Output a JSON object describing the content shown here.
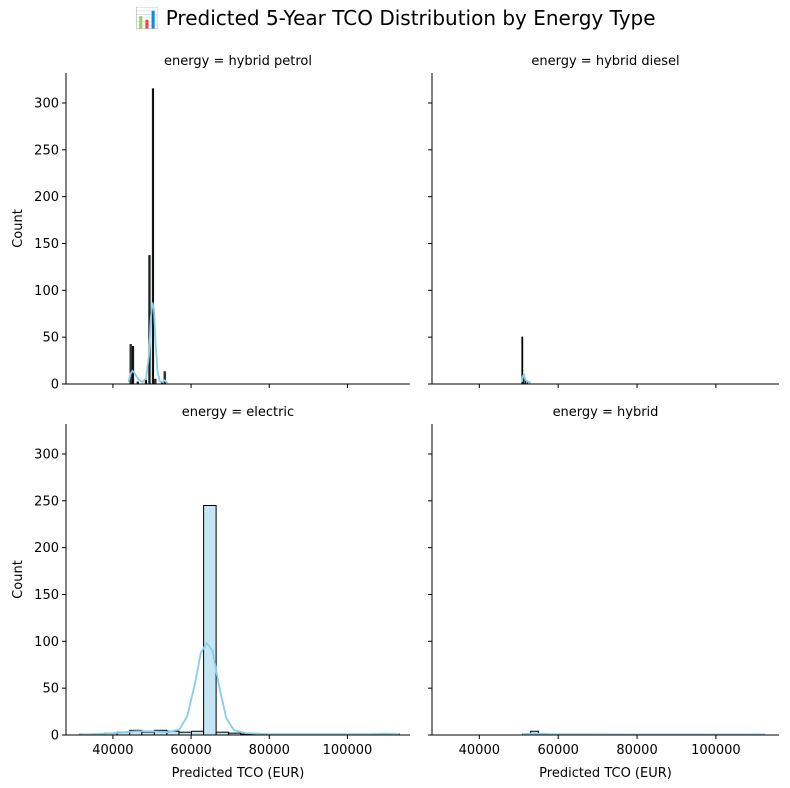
{
  "title": "📊 Predicted 5-Year TCO Distribution by Energy Type",
  "chart_data": {
    "type": "histogram",
    "title": "📊 Predicted 5-Year TCO Distribution by Energy Type",
    "xlabel": "Predicted TCO (EUR)",
    "ylabel": "Count",
    "xlim": [
      28000,
      116000
    ],
    "ylim": [
      0,
      332
    ],
    "xticks": [
      40000,
      60000,
      80000,
      100000
    ],
    "yticks": [
      0,
      50,
      100,
      150,
      200,
      250,
      300
    ],
    "bar_color": "#87ceeb",
    "kde_color": "#87ceeb",
    "edge_color": "#000000",
    "panels": [
      {
        "label": "energy = hybrid petrol",
        "bins": [
          {
            "x0": 44400,
            "x1": 44700,
            "count": 42
          },
          {
            "x0": 45000,
            "x1": 45300,
            "count": 40
          },
          {
            "x0": 46200,
            "x1": 46500,
            "count": 2
          },
          {
            "x0": 48300,
            "x1": 48600,
            "count": 4
          },
          {
            "x0": 49200,
            "x1": 49500,
            "count": 137
          },
          {
            "x0": 50100,
            "x1": 50400,
            "count": 315
          },
          {
            "x0": 50700,
            "x1": 51000,
            "count": 5
          },
          {
            "x0": 52400,
            "x1": 52700,
            "count": 2
          },
          {
            "x0": 53100,
            "x1": 53400,
            "count": 13
          }
        ],
        "kde": [
          [
            44000,
            2
          ],
          [
            44500,
            11
          ],
          [
            45000,
            14
          ],
          [
            45500,
            12
          ],
          [
            46500,
            5
          ],
          [
            47500,
            2
          ],
          [
            48500,
            6
          ],
          [
            49200,
            30
          ],
          [
            49700,
            70
          ],
          [
            50100,
            87
          ],
          [
            50500,
            80
          ],
          [
            50900,
            45
          ],
          [
            51400,
            14
          ],
          [
            52000,
            3
          ],
          [
            52700,
            2
          ],
          [
            53200,
            4
          ],
          [
            54000,
            1
          ]
        ]
      },
      {
        "label": "energy = hybrid diesel",
        "bins": [
          {
            "x0": 50800,
            "x1": 51000,
            "count": 50
          },
          {
            "x0": 51000,
            "x1": 51300,
            "count": 8
          },
          {
            "x0": 51300,
            "x1": 51700,
            "count": 5
          },
          {
            "x0": 51700,
            "x1": 52200,
            "count": 3
          },
          {
            "x0": 52200,
            "x1": 52800,
            "count": 2
          }
        ],
        "kde": [
          [
            50800,
            2
          ],
          [
            51000,
            8
          ],
          [
            51300,
            10
          ],
          [
            51600,
            5
          ],
          [
            52000,
            3
          ],
          [
            52500,
            2
          ],
          [
            53000,
            1
          ]
        ]
      },
      {
        "label": "energy = electric",
        "bins": [
          {
            "x0": 31600,
            "x1": 34800,
            "count": 1
          },
          {
            "x0": 34800,
            "x1": 37900,
            "count": 1
          },
          {
            "x0": 37900,
            "x1": 41100,
            "count": 2
          },
          {
            "x0": 41100,
            "x1": 44300,
            "count": 3
          },
          {
            "x0": 44300,
            "x1": 47400,
            "count": 5
          },
          {
            "x0": 47400,
            "x1": 50600,
            "count": 3
          },
          {
            "x0": 50600,
            "x1": 53800,
            "count": 5
          },
          {
            "x0": 53800,
            "x1": 56900,
            "count": 4
          },
          {
            "x0": 56900,
            "x1": 60100,
            "count": 3
          },
          {
            "x0": 60100,
            "x1": 63200,
            "count": 4
          },
          {
            "x0": 63200,
            "x1": 66400,
            "count": 245
          },
          {
            "x0": 66400,
            "x1": 69600,
            "count": 3
          },
          {
            "x0": 69600,
            "x1": 72700,
            "count": 2
          },
          {
            "x0": 72700,
            "x1": 75900,
            "count": 1
          },
          {
            "x0": 75900,
            "x1": 79100,
            "count": 1
          },
          {
            "x0": 79100,
            "x1": 82200,
            "count": 1
          },
          {
            "x0": 100000,
            "x1": 103000,
            "count": 1
          },
          {
            "x0": 110000,
            "x1": 113300,
            "count": 1
          }
        ],
        "kde": [
          [
            31600,
            0.5
          ],
          [
            35000,
            1
          ],
          [
            40000,
            2
          ],
          [
            43000,
            3
          ],
          [
            46000,
            4
          ],
          [
            50000,
            4
          ],
          [
            54000,
            3
          ],
          [
            57000,
            6
          ],
          [
            59000,
            20
          ],
          [
            61000,
            55
          ],
          [
            62500,
            88
          ],
          [
            64000,
            98
          ],
          [
            65500,
            90
          ],
          [
            67000,
            55
          ],
          [
            69000,
            18
          ],
          [
            71000,
            5
          ],
          [
            74000,
            2
          ],
          [
            80000,
            1
          ],
          [
            90000,
            1
          ],
          [
            100000,
            1
          ],
          [
            106000,
            1
          ],
          [
            110000,
            1.5
          ],
          [
            113300,
            1
          ]
        ]
      },
      {
        "label": "energy = hybrid",
        "bins": [
          {
            "x0": 51000,
            "x1": 53000,
            "count": 1
          },
          {
            "x0": 53000,
            "x1": 55000,
            "count": 4
          },
          {
            "x0": 55000,
            "x1": 57000,
            "count": 1
          },
          {
            "x0": 57000,
            "x1": 59000,
            "count": 1
          },
          {
            "x0": 59000,
            "x1": 61000,
            "count": 1
          }
        ],
        "kde": [
          [
            51000,
            1
          ],
          [
            54000,
            1.5
          ],
          [
            58000,
            1
          ],
          [
            65000,
            0.8
          ],
          [
            75000,
            0.6
          ],
          [
            85000,
            0.6
          ],
          [
            95000,
            0.6
          ],
          [
            105000,
            0.6
          ],
          [
            112500,
            0.6
          ]
        ]
      }
    ]
  }
}
